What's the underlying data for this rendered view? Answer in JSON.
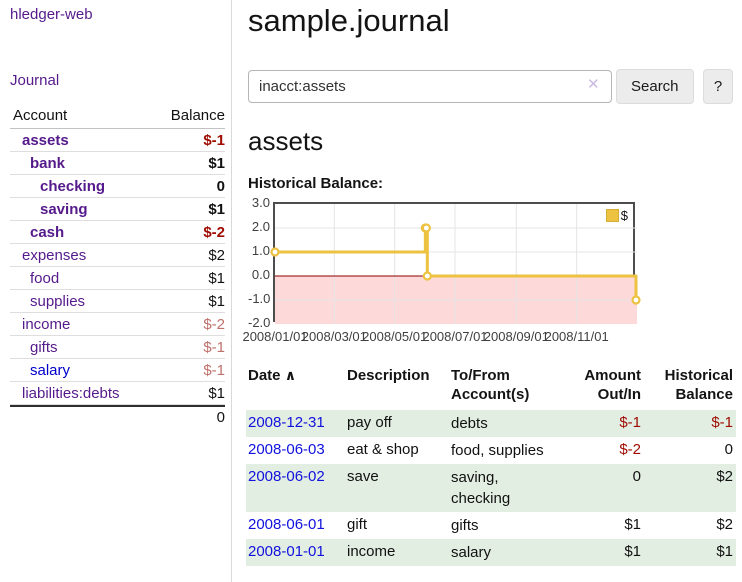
{
  "app": {
    "title": "hledger-web"
  },
  "colors": {
    "link_purple": "#551a8b",
    "link_blue": "#0000cc",
    "date_link_blue": "#1111dd",
    "negative_strong": "#9e0b00",
    "negative_soft": "#c0716b",
    "row_highlight_green": "#e3eee3",
    "button_gray": "#ececec"
  },
  "sidebar": {
    "journal_link": "Journal",
    "account_header": "Account",
    "balance_header": "Balance",
    "accounts": [
      {
        "name": "assets",
        "balance": "$-1"
      },
      {
        "name": "bank",
        "balance": "$1"
      },
      {
        "name": "checking",
        "balance": "0"
      },
      {
        "name": "saving",
        "balance": "$1"
      },
      {
        "name": "cash",
        "balance": "$-2"
      },
      {
        "name": "expenses",
        "balance": "$2"
      },
      {
        "name": "food",
        "balance": "$1"
      },
      {
        "name": "supplies",
        "balance": "$1"
      },
      {
        "name": "income",
        "balance": "$-2"
      },
      {
        "name": "gifts",
        "balance": "$-1"
      },
      {
        "name": "salary",
        "balance": "$-1"
      },
      {
        "name": "liabilities:debts",
        "balance": "$1"
      }
    ],
    "total": "0"
  },
  "main": {
    "title": "sample.journal",
    "search": {
      "value": "inacct:assets",
      "clear_icon": "✕",
      "search_button": "Search",
      "help_button": "?"
    },
    "account_heading": "assets",
    "chart_heading": "Historical Balance:"
  },
  "chart_data": {
    "type": "line",
    "step": true,
    "title": "Historical Balance",
    "series": [
      {
        "name": "$",
        "color": "#edc240",
        "points": [
          [
            "2008-01-01",
            1
          ],
          [
            "2008-06-01",
            2
          ],
          [
            "2008-06-02",
            2
          ],
          [
            "2008-06-03",
            0
          ],
          [
            "2008-12-31",
            -1
          ]
        ]
      }
    ],
    "x_start": "2008-01-01",
    "x_end": "2009-01-01",
    "x_ticks": [
      "2008/01/01",
      "2008/03/01",
      "2008/05/01",
      "2008/07/01",
      "2008/09/01",
      "2008/11/01"
    ],
    "y_ticks": [
      3,
      2,
      1,
      0,
      -1,
      -2
    ],
    "ylim": [
      -2,
      3
    ],
    "grid": true,
    "grid_color": "#e5e5e5",
    "negative_region_color": "#fdd9d9",
    "zero_line_color": "#8b0000",
    "legend_position": "top-right"
  },
  "register": {
    "headers": {
      "date": "Date",
      "sort_icon": "∧",
      "description": "Description",
      "accounts": "To/From Account(s)",
      "amount": "Amount Out/In",
      "balance": "Historical Balance"
    },
    "rows": [
      {
        "date": "2008-12-31",
        "description": "pay off",
        "accounts": "debts",
        "amount": "$-1",
        "balance": "$-1"
      },
      {
        "date": "2008-06-03",
        "description": "eat & shop",
        "accounts": "food, supplies",
        "amount": "$-2",
        "balance": "0"
      },
      {
        "date": "2008-06-02",
        "description": "save",
        "accounts": "saving,\nchecking",
        "amount": "0",
        "balance": "$2"
      },
      {
        "date": "2008-06-01",
        "description": "gift",
        "accounts": "gifts",
        "amount": "$1",
        "balance": "$2"
      },
      {
        "date": "2008-01-01",
        "description": "income",
        "accounts": "salary",
        "amount": "$1",
        "balance": "$1"
      }
    ]
  }
}
